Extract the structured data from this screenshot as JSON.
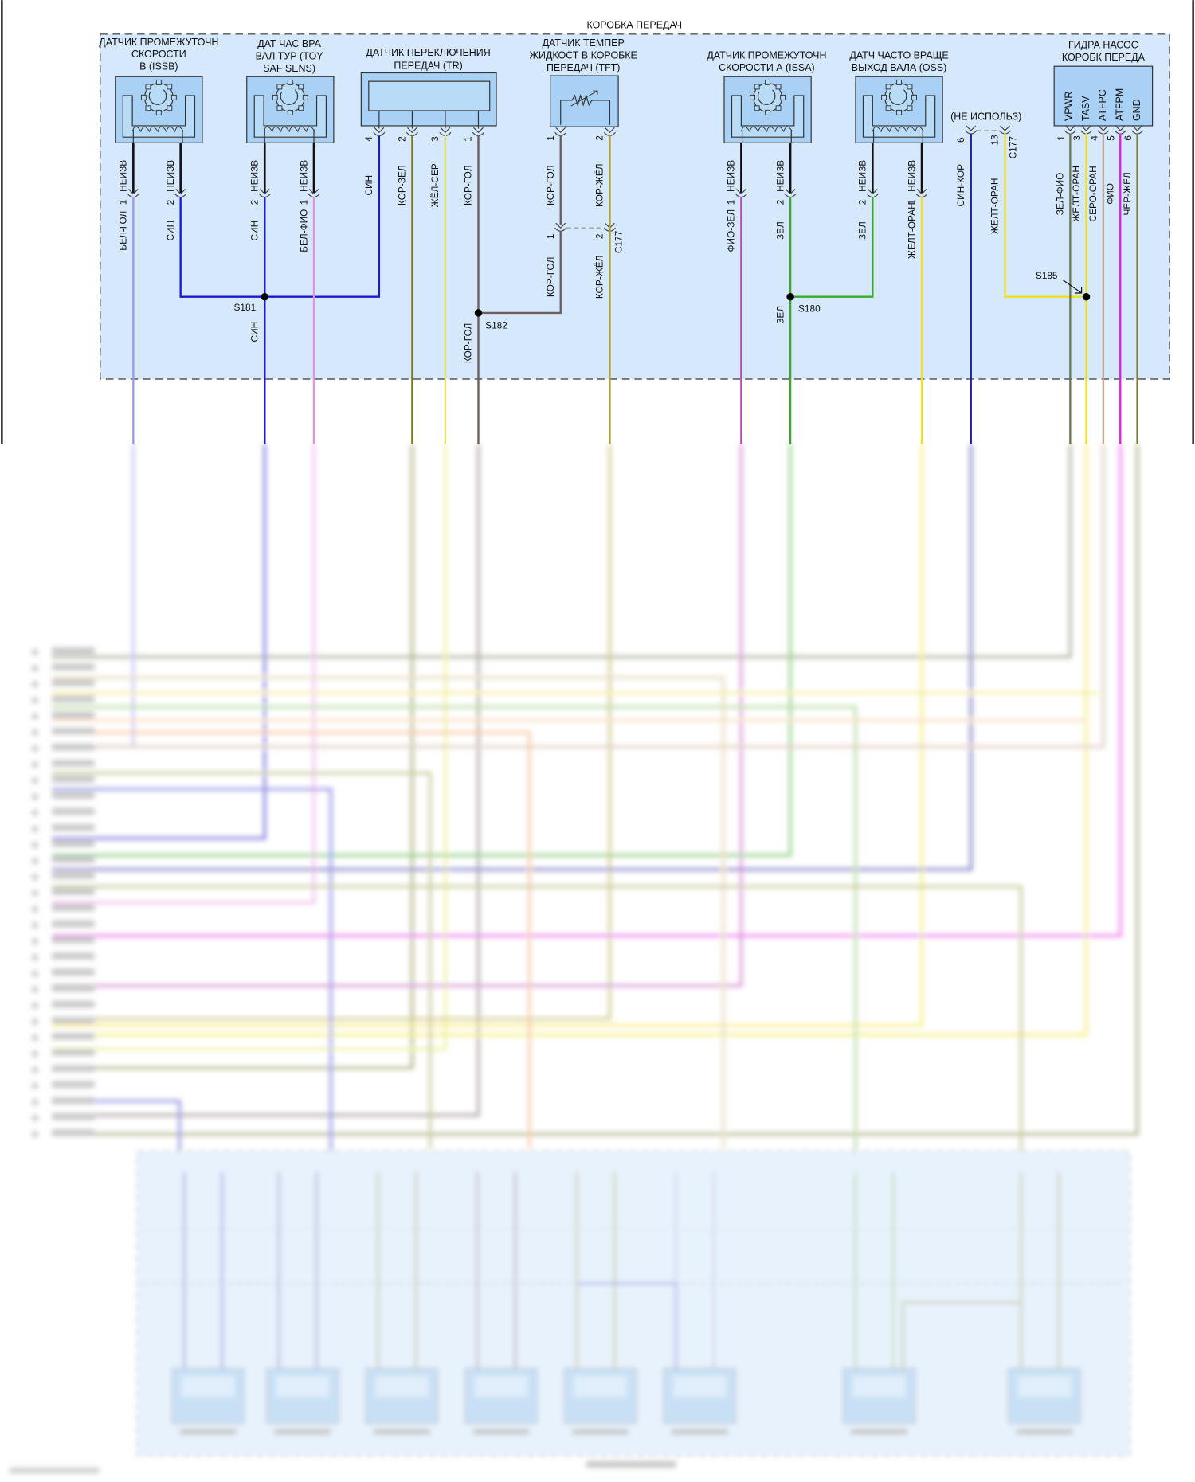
{
  "diagram": {
    "title": "КОРОБКА ПЕРЕДАЧ",
    "not_used": "(НЕ ИСПОЛЬЗ)",
    "connector": "C177",
    "lead_label": "НЕИЗВ"
  },
  "components": [
    {
      "id": "issb",
      "title": [
        "ДАТЧИК ПРОМЕЖУТОЧН",
        "СКОРОСТИ",
        "В (ISSB)"
      ]
    },
    {
      "id": "tss",
      "title": [
        "ДАТ ЧАС ВРА",
        "ВАЛ ТУР (TOY",
        "SAF SENS)"
      ]
    },
    {
      "id": "tr",
      "title": [
        "ДАТЧИК ПЕРЕКЛЮЧЕНИЯ",
        "ПЕРЕДАЧ (TR)"
      ]
    },
    {
      "id": "tft",
      "title": [
        "ДАТЧИК ТЕМПЕР",
        "ЖИДКОСТ В КОРОБКЕ",
        "ПЕРЕДАЧ (TFT)"
      ]
    },
    {
      "id": "issa",
      "title": [
        "ДАТЧИК ПРОМЕЖУТОЧН",
        "СКОРОСТИ А (ISSA)"
      ]
    },
    {
      "id": "oss",
      "title": [
        "ДАТЧ ЧАСТО ВРАЩЕ",
        "ВЫХОД ВАЛА (OSS)"
      ]
    },
    {
      "id": "pump",
      "title": [
        "ГИДРА НАСОС",
        "КОРОБК ПЕРЕДА"
      ],
      "pins": [
        "VPWR",
        "TASV",
        "ATFPC",
        "ATFPM",
        "GND"
      ]
    }
  ],
  "splices": [
    "S181",
    "S182",
    "S180",
    "S185"
  ],
  "splice_labels": [
    "СИН",
    "КОР-ГОЛ",
    "ЗЕЛ"
  ],
  "wires": [
    {
      "pin": "1",
      "label": "БЕЛ-ГОЛ",
      "color": "#9a9ae6"
    },
    {
      "pin": "2",
      "label": "СИН",
      "color": "#1a1acc"
    },
    {
      "pin": "2",
      "label": "СИН",
      "color": "#1a1acc"
    },
    {
      "pin": "1",
      "label": "БЕЛ-ФИО",
      "color": "#e890e0"
    },
    {
      "pin": "4",
      "label": "СИН",
      "color": "#1a1acc"
    },
    {
      "pin": "2",
      "label": "КОР-ЗЕЛ",
      "color": "#7a7a22"
    },
    {
      "pin": "3",
      "label": "ЖЁЛ-СЕР",
      "color": "#e6e65a"
    },
    {
      "pin": "1",
      "label": "КОР-ГОЛ",
      "color": "#6e5e5a"
    },
    {
      "pin": "1",
      "label": "КОР-ГОЛ",
      "color": "#6e5e5a"
    },
    {
      "pin": "2",
      "label": "КОР-ЖЁЛ",
      "color": "#b0a030"
    },
    {
      "pin": "1",
      "label": "ФИО-ЗЕЛ",
      "color": "#b848b8"
    },
    {
      "pin": "2",
      "label": "ЗЕЛ",
      "color": "#3aaa2a"
    },
    {
      "pin": "2",
      "label": "ЗЕЛ",
      "color": "#3aaa2a"
    },
    {
      "pin": "1",
      "label": "ЖЕЛТ-ОРАН",
      "color": "#f0e020"
    },
    {
      "pin": "6",
      "label": "СИН-КОР",
      "color": "#2020a0"
    },
    {
      "pin": "13",
      "label": "ЖЕЛТ-ОРАН",
      "color": "#f0e020"
    },
    {
      "pin": "1",
      "label": "ЗЕЛ-ФИО",
      "color": "#6a7a50"
    },
    {
      "pin": "3",
      "label": "ЖЕЛТ-ОРАН",
      "color": "#f0e020"
    },
    {
      "pin": "4",
      "label": "СЕРО-ОРАН",
      "color": "#c8a890"
    },
    {
      "pin": "5",
      "label": "ФИО",
      "color": "#e020e0"
    },
    {
      "pin": "6",
      "label": "ЧЕР-ЖЕЛ",
      "color": "#7a7a3a"
    }
  ],
  "c177_pins": [
    {
      "pin": "1",
      "label": "КОР-ГОЛ"
    },
    {
      "pin": "2",
      "label": "КОР-ЖЁЛ"
    }
  ],
  "colors": {
    "box_fill": "#d6e8fb",
    "component_fill": "#a9d1f5",
    "dash": "#555555"
  }
}
